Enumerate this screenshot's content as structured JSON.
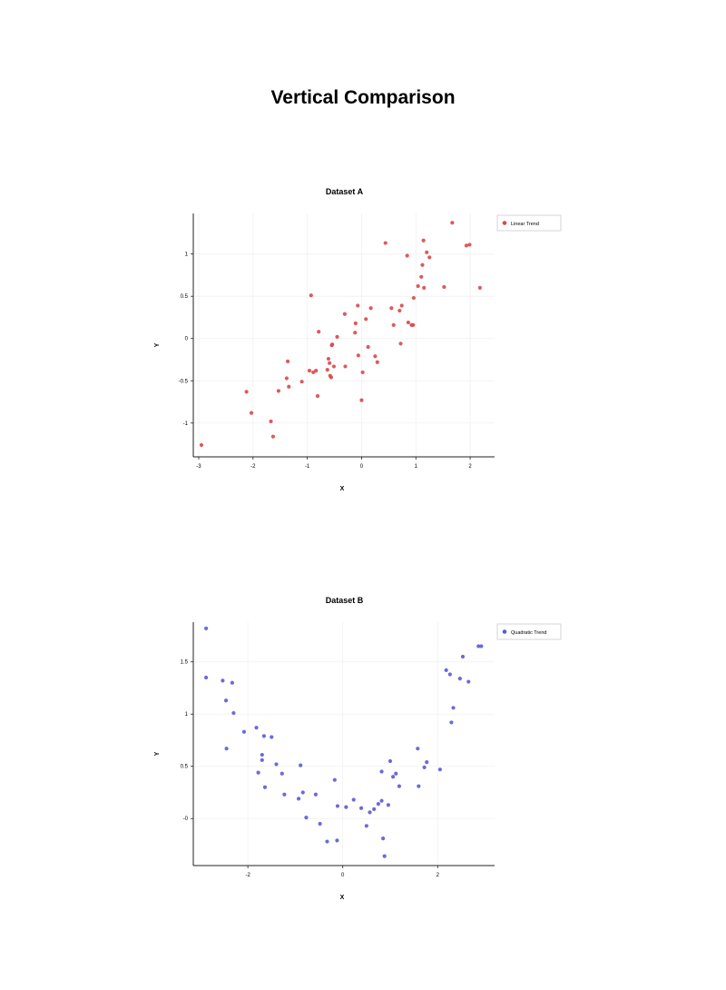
{
  "page": {
    "title": "Vertical Comparison"
  },
  "chart_data": [
    {
      "type": "scatter",
      "title": "Dataset A",
      "xlabel": "X",
      "ylabel": "Y",
      "xlim": [
        -3.1,
        2.45
      ],
      "ylim": [
        -1.4,
        1.48
      ],
      "xticks": [
        -3,
        -2,
        -1,
        0,
        1,
        2
      ],
      "xtick_labels": [
        "-3",
        "-2",
        "-1",
        "0",
        "1",
        "2"
      ],
      "yticks": [
        -1,
        -0.5,
        0,
        0.5,
        1
      ],
      "ytick_labels": [
        "-1",
        "-0.5",
        "0",
        "0.5",
        "1"
      ],
      "grid": true,
      "legend_position": "top-right",
      "series": [
        {
          "name": "Linear Trend",
          "color": "#d94848",
          "points": [
            [
              -2.95,
              -1.26
            ],
            [
              -2.12,
              -0.63
            ],
            [
              -2.03,
              -0.88
            ],
            [
              -1.67,
              -0.98
            ],
            [
              -1.63,
              -1.16
            ],
            [
              -1.53,
              -0.62
            ],
            [
              -1.36,
              -0.27
            ],
            [
              -1.38,
              -0.47
            ],
            [
              -1.34,
              -0.57
            ],
            [
              -1.1,
              -0.51
            ],
            [
              -0.96,
              -0.38
            ],
            [
              -0.93,
              0.51
            ],
            [
              -0.89,
              -0.4
            ],
            [
              -0.84,
              -0.38
            ],
            [
              -0.81,
              -0.68
            ],
            [
              -0.79,
              0.08
            ],
            [
              -0.63,
              -0.37
            ],
            [
              -0.61,
              -0.24
            ],
            [
              -0.59,
              -0.29
            ],
            [
              -0.58,
              -0.44
            ],
            [
              -0.56,
              -0.46
            ],
            [
              -0.55,
              -0.08
            ],
            [
              -0.54,
              -0.07
            ],
            [
              -0.51,
              -0.33
            ],
            [
              -0.45,
              0.02
            ],
            [
              -0.3,
              -0.33
            ],
            [
              -0.31,
              0.29
            ],
            [
              -0.12,
              0.07
            ],
            [
              -0.11,
              0.18
            ],
            [
              -0.07,
              0.39
            ],
            [
              -0.06,
              -0.2
            ],
            [
              0.0,
              -0.73
            ],
            [
              0.02,
              -0.4
            ],
            [
              0.08,
              0.23
            ],
            [
              0.12,
              -0.1
            ],
            [
              0.17,
              0.36
            ],
            [
              0.25,
              -0.21
            ],
            [
              0.29,
              -0.28
            ],
            [
              0.44,
              1.13
            ],
            [
              0.55,
              0.36
            ],
            [
              0.59,
              0.16
            ],
            [
              0.7,
              0.33
            ],
            [
              0.72,
              -0.06
            ],
            [
              0.74,
              0.39
            ],
            [
              0.84,
              0.98
            ],
            [
              0.86,
              0.19
            ],
            [
              0.92,
              0.16
            ],
            [
              0.95,
              0.16
            ],
            [
              0.96,
              0.48
            ],
            [
              1.04,
              0.62
            ],
            [
              1.1,
              0.73
            ],
            [
              1.12,
              0.87
            ],
            [
              1.14,
              1.16
            ],
            [
              1.15,
              0.6
            ],
            [
              1.2,
              1.02
            ],
            [
              1.25,
              0.96
            ],
            [
              1.52,
              0.61
            ],
            [
              1.67,
              1.37
            ],
            [
              1.93,
              1.1
            ],
            [
              1.99,
              1.11
            ],
            [
              2.18,
              0.6
            ]
          ]
        }
      ]
    },
    {
      "type": "scatter",
      "title": "Dataset B",
      "xlabel": "X",
      "ylabel": "Y",
      "xlim": [
        -3.15,
        3.2
      ],
      "ylim": [
        -0.45,
        1.88
      ],
      "xticks": [
        -2,
        0,
        2
      ],
      "xtick_labels": [
        "-2",
        "0",
        "2"
      ],
      "yticks": [
        0,
        0.5,
        1,
        1.5
      ],
      "ytick_labels": [
        "-0",
        "0.5",
        "1",
        "1.5"
      ],
      "grid": true,
      "legend_position": "top-right",
      "series": [
        {
          "name": "Quadratic Trend",
          "color": "#5a5ad8",
          "points": [
            [
              -2.88,
              1.82
            ],
            [
              -2.88,
              1.35
            ],
            [
              -2.53,
              1.32
            ],
            [
              -2.46,
              1.13
            ],
            [
              -2.45,
              0.67
            ],
            [
              -2.33,
              1.3
            ],
            [
              -2.3,
              1.01
            ],
            [
              -2.08,
              0.83
            ],
            [
              -1.82,
              0.87
            ],
            [
              -1.78,
              0.44
            ],
            [
              -1.7,
              0.61
            ],
            [
              -1.7,
              0.56
            ],
            [
              -1.66,
              0.79
            ],
            [
              -1.64,
              0.3
            ],
            [
              -1.5,
              0.78
            ],
            [
              -1.4,
              0.52
            ],
            [
              -1.28,
              0.43
            ],
            [
              -1.23,
              0.23
            ],
            [
              -0.93,
              0.19
            ],
            [
              -0.89,
              0.51
            ],
            [
              -0.84,
              0.25
            ],
            [
              -0.77,
              0.01
            ],
            [
              -0.57,
              0.23
            ],
            [
              -0.48,
              -0.05
            ],
            [
              -0.33,
              -0.22
            ],
            [
              -0.17,
              0.37
            ],
            [
              -0.12,
              -0.21
            ],
            [
              -0.11,
              0.12
            ],
            [
              0.07,
              0.11
            ],
            [
              0.23,
              0.18
            ],
            [
              0.39,
              0.1
            ],
            [
              0.5,
              -0.07
            ],
            [
              0.57,
              0.06
            ],
            [
              0.66,
              0.09
            ],
            [
              0.75,
              0.14
            ],
            [
              0.82,
              0.45
            ],
            [
              0.82,
              0.17
            ],
            [
              0.85,
              -0.19
            ],
            [
              0.88,
              -0.36
            ],
            [
              0.96,
              0.13
            ],
            [
              1.0,
              0.55
            ],
            [
              1.06,
              0.4
            ],
            [
              1.12,
              0.43
            ],
            [
              1.19,
              0.31
            ],
            [
              1.58,
              0.67
            ],
            [
              1.6,
              0.31
            ],
            [
              1.72,
              0.49
            ],
            [
              1.77,
              0.54
            ],
            [
              2.05,
              0.47
            ],
            [
              2.18,
              1.42
            ],
            [
              2.26,
              1.38
            ],
            [
              2.29,
              0.92
            ],
            [
              2.33,
              1.06
            ],
            [
              2.47,
              1.34
            ],
            [
              2.53,
              1.55
            ],
            [
              2.65,
              1.31
            ],
            [
              2.86,
              1.65
            ],
            [
              2.92,
              1.65
            ]
          ]
        }
      ]
    }
  ]
}
